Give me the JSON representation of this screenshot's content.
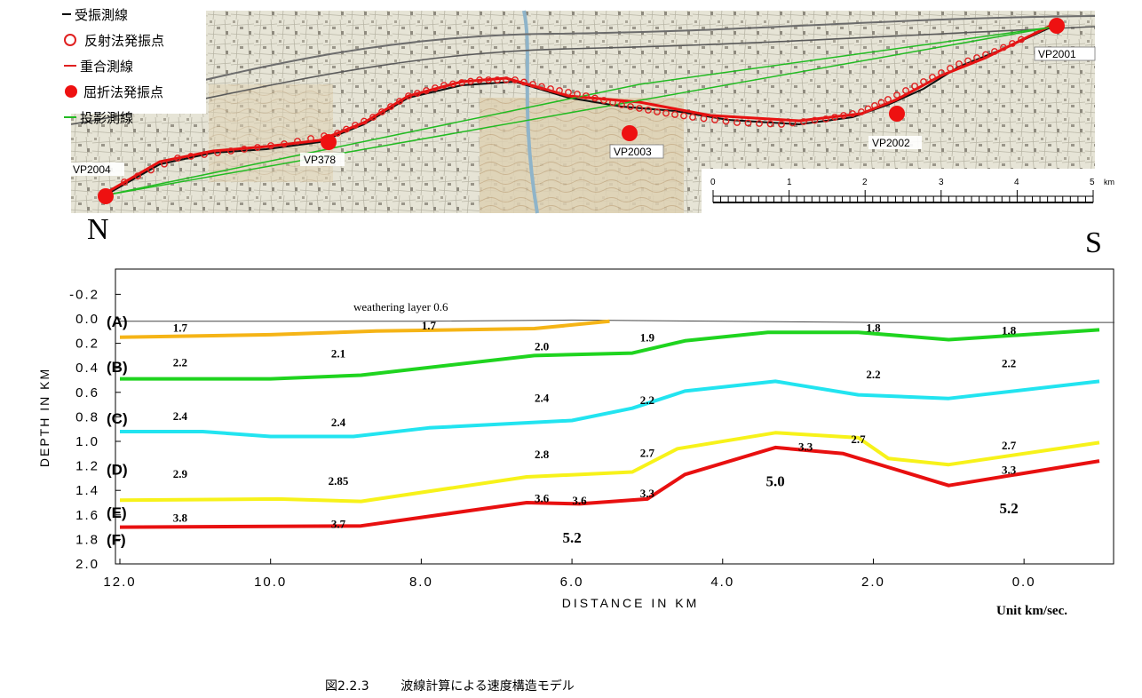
{
  "map": {
    "legend": [
      {
        "label": "受振測線",
        "symbol": "line",
        "color": "#000000"
      },
      {
        "label": "反射法発振点",
        "symbol": "open-circle",
        "color": "#e02020"
      },
      {
        "label": "重合測線",
        "symbol": "line",
        "color": "#e02020"
      },
      {
        "label": "屈折法発振点",
        "symbol": "filled-circle",
        "color": "#ee1111"
      },
      {
        "label": "投影測線",
        "symbol": "line",
        "color": "#22bb22"
      }
    ],
    "shot_points": [
      "VP2001",
      "VP2002",
      "VP2003",
      "VP378",
      "VP2004"
    ],
    "scale_bar": {
      "ticks": [
        "0",
        "1",
        "2",
        "3",
        "4",
        "5"
      ],
      "unit": "km"
    },
    "compass_north": "N",
    "compass_south": "S"
  },
  "chart_data": {
    "type": "line",
    "title": "",
    "xlabel": "DISTANCE IN KM",
    "ylabel": "DEPTH IN KM",
    "xlim": [
      12.0,
      -1.2
    ],
    "ylim": [
      -0.35,
      2.0
    ],
    "x_ticks": [
      "12.0",
      "10.0",
      "8.0",
      "6.0",
      "4.0",
      "2.0",
      "0.0"
    ],
    "y_ticks": [
      "-0.2",
      "0.0",
      "0.2",
      "0.4",
      "0.6",
      "0.8",
      "1.0",
      "1.2",
      "1.4",
      "1.6",
      "1.8",
      "2.0"
    ],
    "series": [
      {
        "name": "",
        "color": "#444444",
        "points": [
          [
            12.0,
            0.02
          ],
          [
            10.0,
            0.02
          ],
          [
            8.0,
            0.02
          ],
          [
            6.0,
            0.01
          ],
          [
            4.0,
            0.02
          ],
          [
            2.0,
            0.03
          ],
          [
            0.0,
            0.03
          ],
          [
            -1.2,
            0.03
          ]
        ]
      },
      {
        "name": "",
        "color": "#f5b416",
        "points": [
          [
            12.0,
            0.15
          ],
          [
            10.0,
            0.13
          ],
          [
            8.6,
            0.1
          ],
          [
            6.5,
            0.08
          ],
          [
            5.5,
            0.02
          ]
        ]
      },
      {
        "name": "",
        "color": "#1fd41f",
        "points": [
          [
            12.0,
            0.49
          ],
          [
            10.0,
            0.49
          ],
          [
            8.8,
            0.46
          ],
          [
            6.5,
            0.3
          ],
          [
            5.2,
            0.28
          ],
          [
            4.5,
            0.18
          ],
          [
            3.4,
            0.11
          ],
          [
            2.2,
            0.11
          ],
          [
            1.0,
            0.17
          ],
          [
            -1.0,
            0.09
          ]
        ]
      },
      {
        "name": "",
        "color": "#22e4f0",
        "points": [
          [
            12.0,
            0.92
          ],
          [
            10.9,
            0.92
          ],
          [
            10.0,
            0.96
          ],
          [
            8.9,
            0.96
          ],
          [
            7.9,
            0.89
          ],
          [
            6.0,
            0.83
          ],
          [
            5.2,
            0.73
          ],
          [
            4.5,
            0.59
          ],
          [
            3.3,
            0.51
          ],
          [
            2.2,
            0.62
          ],
          [
            1.0,
            0.65
          ],
          [
            -1.0,
            0.51
          ]
        ]
      },
      {
        "name": "",
        "color": "#f7f21a",
        "points": [
          [
            12.0,
            1.48
          ],
          [
            9.9,
            1.47
          ],
          [
            8.8,
            1.49
          ],
          [
            6.6,
            1.29
          ],
          [
            5.2,
            1.25
          ],
          [
            4.6,
            1.06
          ],
          [
            3.3,
            0.93
          ],
          [
            2.2,
            0.97
          ],
          [
            1.8,
            1.14
          ],
          [
            1.0,
            1.19
          ],
          [
            -1.0,
            1.01
          ]
        ]
      },
      {
        "name": "",
        "color": "#e81010",
        "points": [
          [
            12.0,
            1.7
          ],
          [
            8.8,
            1.69
          ],
          [
            6.6,
            1.5
          ],
          [
            5.9,
            1.51
          ],
          [
            5.0,
            1.47
          ],
          [
            4.5,
            1.27
          ],
          [
            3.3,
            1.05
          ],
          [
            2.4,
            1.1
          ],
          [
            1.0,
            1.36
          ],
          [
            -1.0,
            1.16
          ]
        ]
      }
    ],
    "layer_labels": [
      {
        "text": "(A)",
        "x": 12.0,
        "y": 0.02
      },
      {
        "text": "(B)",
        "x": 12.0,
        "y": 0.39
      },
      {
        "text": "(C)",
        "x": 12.0,
        "y": 0.81
      },
      {
        "text": "(D)",
        "x": 12.0,
        "y": 1.23
      },
      {
        "text": "(E)",
        "x": 12.0,
        "y": 1.58
      },
      {
        "text": "(F)",
        "x": 12.0,
        "y": 1.8
      }
    ],
    "annotations": [
      {
        "text": "weathering layer 0.6",
        "x": 8.9,
        "y": -0.1,
        "style": "plain"
      },
      {
        "text": "1.7",
        "x": 11.2,
        "y": 0.07
      },
      {
        "text": "1.7",
        "x": 7.9,
        "y": 0.05
      },
      {
        "text": "2.0",
        "x": 6.4,
        "y": 0.22
      },
      {
        "text": "1.9",
        "x": 5.0,
        "y": 0.15
      },
      {
        "text": "1.8",
        "x": 2.0,
        "y": 0.07
      },
      {
        "text": "1.8",
        "x": 0.2,
        "y": 0.09
      },
      {
        "text": "2.2",
        "x": 11.2,
        "y": 0.35
      },
      {
        "text": "2.1",
        "x": 9.1,
        "y": 0.28
      },
      {
        "text": "2.2",
        "x": 2.0,
        "y": 0.45
      },
      {
        "text": "2.2",
        "x": 0.2,
        "y": 0.36
      },
      {
        "text": "2.4",
        "x": 6.4,
        "y": 0.64
      },
      {
        "text": "2.2",
        "x": 5.0,
        "y": 0.66
      },
      {
        "text": "2.4",
        "x": 11.2,
        "y": 0.79
      },
      {
        "text": "2.4",
        "x": 9.1,
        "y": 0.84
      },
      {
        "text": "2.8",
        "x": 6.4,
        "y": 1.1
      },
      {
        "text": "2.7",
        "x": 5.0,
        "y": 1.09
      },
      {
        "text": "3.3",
        "x": 2.9,
        "y": 1.04
      },
      {
        "text": "2.7",
        "x": 2.2,
        "y": 0.98
      },
      {
        "text": "2.7",
        "x": 0.2,
        "y": 1.03
      },
      {
        "text": "2.9",
        "x": 11.2,
        "y": 1.26
      },
      {
        "text": "2.85",
        "x": 9.1,
        "y": 1.32
      },
      {
        "text": "3.3",
        "x": 0.2,
        "y": 1.23
      },
      {
        "text": "3.6",
        "x": 6.4,
        "y": 1.46
      },
      {
        "text": "3.6",
        "x": 5.9,
        "y": 1.48
      },
      {
        "text": "3.3",
        "x": 5.0,
        "y": 1.42
      },
      {
        "text": "5.0",
        "x": 3.3,
        "y": 1.33,
        "style": "large"
      },
      {
        "text": "3.8",
        "x": 11.2,
        "y": 1.62
      },
      {
        "text": "3.7",
        "x": 9.1,
        "y": 1.67
      },
      {
        "text": "5.2",
        "x": 0.2,
        "y": 1.55,
        "style": "large"
      },
      {
        "text": "5.2",
        "x": 6.0,
        "y": 1.79,
        "style": "large"
      }
    ],
    "grid": false
  },
  "unit_label": "Unit km/sec.",
  "caption": "図2.2.3        波線計算による速度構造モデル"
}
